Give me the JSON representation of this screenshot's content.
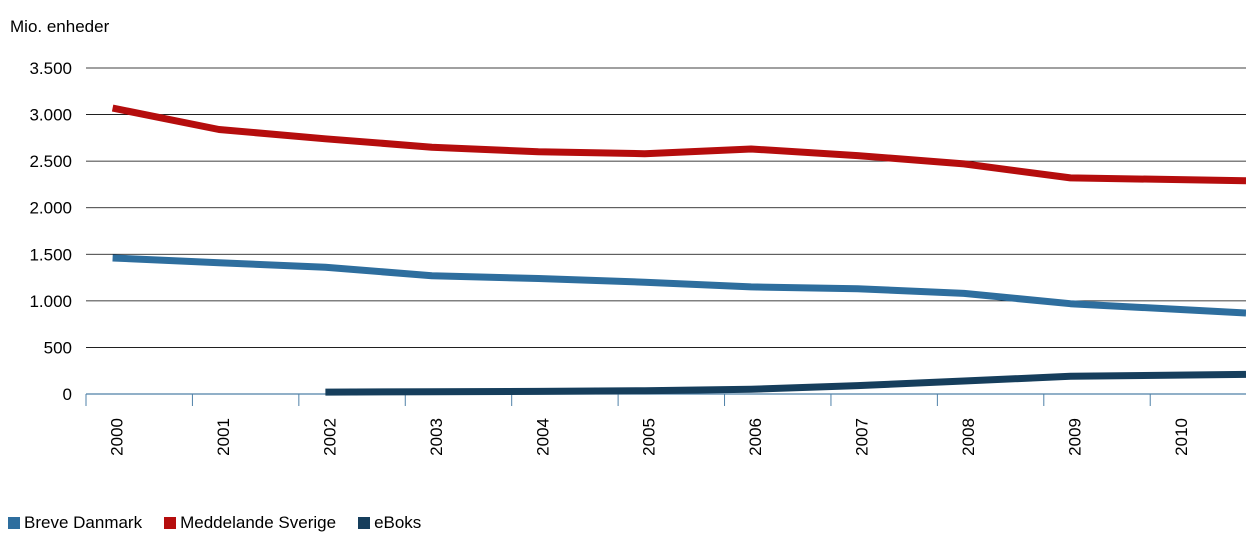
{
  "chart_data": {
    "type": "line",
    "ylabel": "Mio. enheder",
    "xlabel": "",
    "categories": [
      "2000",
      "2001",
      "2002",
      "2003",
      "2004",
      "2005",
      "2006",
      "2007",
      "2008",
      "2009",
      "2010"
    ],
    "ylim": [
      0,
      3500
    ],
    "yticks": [
      0,
      500,
      1000,
      1500,
      2000,
      2500,
      3000,
      3500
    ],
    "ytick_labels": [
      "0",
      "500",
      "1.000",
      "1.500",
      "2.000",
      "2.500",
      "3.000",
      "3.500"
    ],
    "grid": "horizontal",
    "legend_position": "bottom-left",
    "series": [
      {
        "name": "Breve Danmark",
        "color": "#2e6e9e",
        "values": [
          1460,
          1410,
          1360,
          1270,
          1240,
          1200,
          1150,
          1130,
          1080,
          970,
          870
        ]
      },
      {
        "name": "Meddelande Sverige",
        "color": "#b50d0d",
        "values": [
          3070,
          2840,
          2740,
          2650,
          2600,
          2580,
          2630,
          2560,
          2470,
          2320,
          2290
        ]
      },
      {
        "name": "eBoks",
        "color": "#163e5c",
        "values": [
          null,
          null,
          20,
          25,
          28,
          35,
          50,
          90,
          140,
          190,
          210
        ]
      }
    ]
  }
}
